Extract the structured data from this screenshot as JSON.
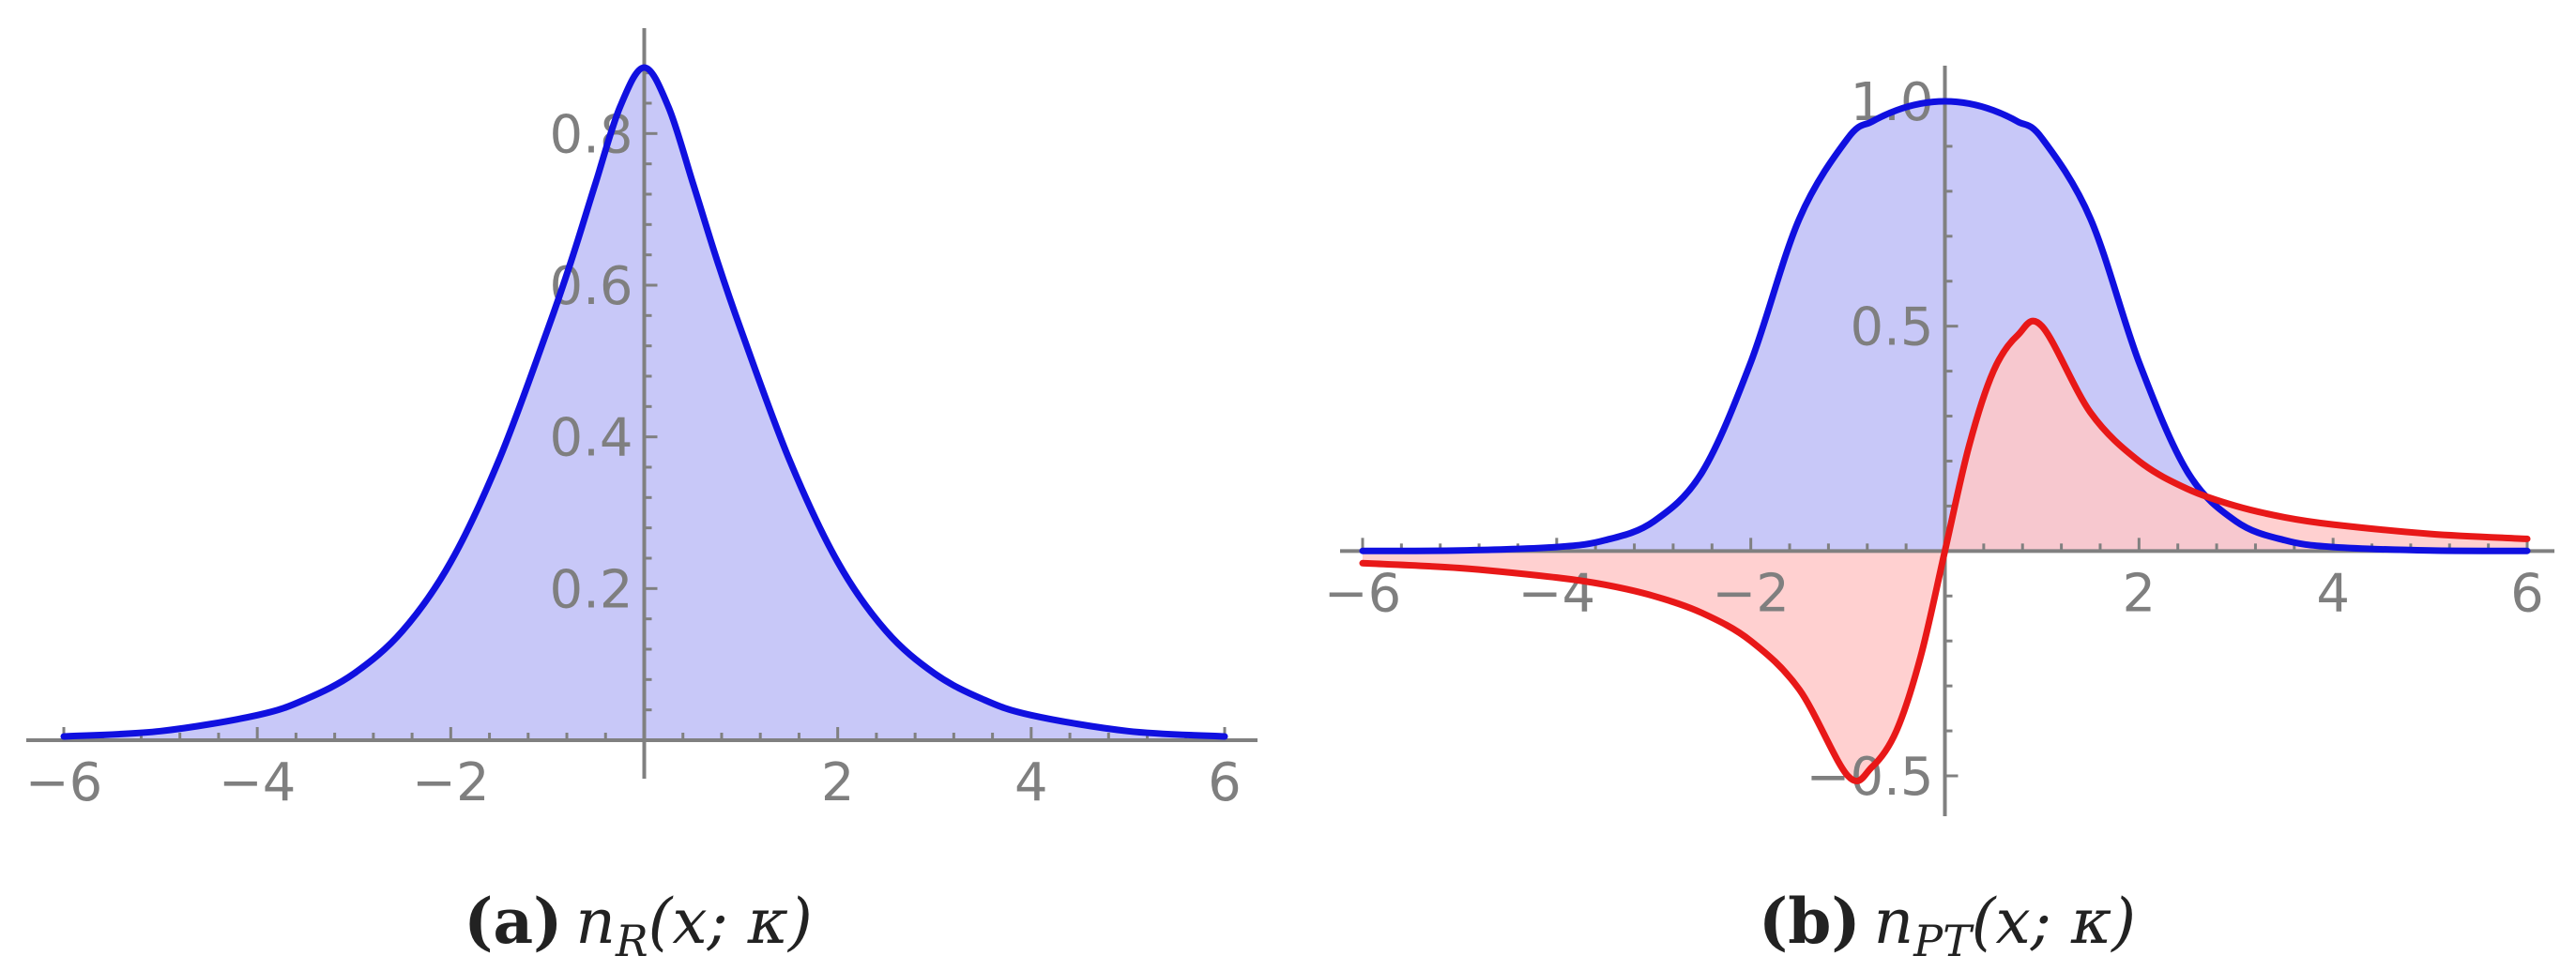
{
  "colors": {
    "axis": "#808080",
    "blue_line": "#1010e0",
    "blue_fill": "#c8c8f8",
    "red_line": "#e81818",
    "red_fill": "#ffc8c8"
  },
  "chart_data": [
    {
      "type": "area",
      "panel_label": "(a)",
      "caption_main": "n",
      "caption_sub": "R",
      "caption_args": "(x; κ)",
      "xlim": [
        -6,
        6
      ],
      "ylim": [
        0,
        0.887
      ],
      "x_ticks": [
        -6,
        -4,
        -2,
        2,
        4,
        6
      ],
      "x_tick_labels": [
        "−6",
        "−4",
        "−2",
        "2",
        "4",
        "6"
      ],
      "y_ticks": [
        0.2,
        0.4,
        0.6,
        0.8
      ],
      "y_tick_labels": [
        "0.2",
        "0.4",
        "0.6",
        "0.8"
      ],
      "grid": false,
      "series": [
        {
          "color": "blue",
          "x": [
            -6,
            -5,
            -4,
            -3.5,
            -3,
            -2.5,
            -2,
            -1.5,
            -1,
            -0.75,
            -0.5,
            -0.25,
            0,
            0.25,
            0.5,
            0.75,
            1,
            1.5,
            2,
            2.5,
            3,
            3.5,
            4,
            5,
            6
          ],
          "y": [
            0.005,
            0.012,
            0.033,
            0.054,
            0.088,
            0.144,
            0.235,
            0.37,
            0.541,
            0.634,
            0.736,
            0.835,
            0.887,
            0.835,
            0.736,
            0.634,
            0.541,
            0.37,
            0.235,
            0.144,
            0.088,
            0.054,
            0.033,
            0.012,
            0.005
          ]
        }
      ]
    },
    {
      "type": "area",
      "panel_label": "(b)",
      "caption_main": "n",
      "caption_sub": "PT",
      "caption_args": "(x; κ)",
      "xlim": [
        -6,
        6
      ],
      "ylim": [
        -0.5,
        1.0
      ],
      "x_ticks": [
        -6,
        -4,
        -2,
        2,
        4,
        6
      ],
      "x_tick_labels": [
        "−6",
        "−4",
        "−2",
        "2",
        "4",
        "6"
      ],
      "y_ticks": [
        -0.5,
        0.5,
        1.0
      ],
      "y_tick_labels": [
        "−0.5",
        "0.5",
        "1.0"
      ],
      "grid": false,
      "series": [
        {
          "color": "blue",
          "x": [
            -6,
            -5,
            -4,
            -3.5,
            -3,
            -2.5,
            -2,
            -1.5,
            -1,
            -0.75,
            -0.5,
            -0.25,
            0,
            0.25,
            0.5,
            0.75,
            1,
            1.5,
            2,
            2.5,
            3,
            3.5,
            4,
            5,
            6
          ],
          "y": [
            0.0002,
            0.0012,
            0.0089,
            0.024,
            0.066,
            0.176,
            0.42,
            0.739,
            0.918,
            0.955,
            0.98,
            0.995,
            1.0,
            0.995,
            0.98,
            0.955,
            0.918,
            0.739,
            0.42,
            0.176,
            0.066,
            0.024,
            0.0089,
            0.0012,
            0.0002
          ]
        },
        {
          "color": "red",
          "x": [
            -6,
            -5,
            -4,
            -3.5,
            -3,
            -2.5,
            -2,
            -1.5,
            -1,
            -0.75,
            -0.5,
            -0.25,
            0,
            0.25,
            0.5,
            0.75,
            1,
            1.5,
            2,
            2.5,
            3,
            3.5,
            4,
            5,
            6
          ],
          "y": [
            -0.027,
            -0.038,
            -0.059,
            -0.075,
            -0.1,
            -0.138,
            -0.2,
            -0.308,
            -0.5,
            -0.48,
            -0.4,
            -0.235,
            0,
            0.235,
            0.4,
            0.48,
            0.5,
            0.308,
            0.2,
            0.138,
            0.1,
            0.075,
            0.059,
            0.038,
            0.027
          ]
        }
      ]
    }
  ]
}
